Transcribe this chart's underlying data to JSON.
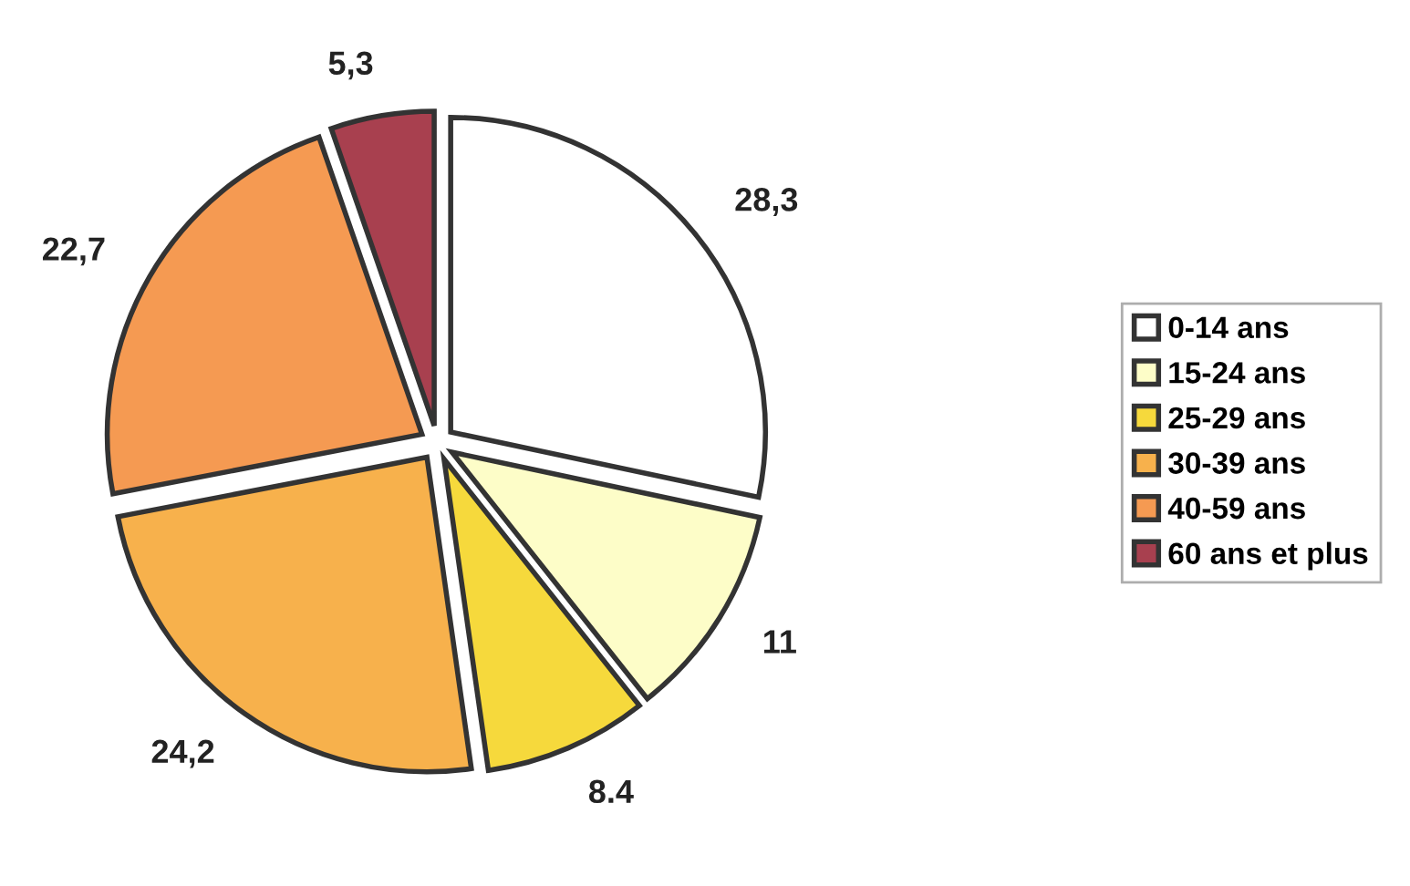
{
  "chart_data": {
    "type": "pie",
    "categories": [
      "0-14 ans",
      "15-24 ans",
      "25-29 ans",
      "30-39 ans",
      "40-59 ans",
      "60 ans et plus"
    ],
    "values": [
      28.3,
      11,
      8.4,
      24.2,
      22.7,
      5.3
    ],
    "value_labels": [
      "28,3",
      "11",
      "8.4",
      "24,2",
      "22,7",
      "5,3"
    ],
    "colors": [
      "#ffffff",
      "#fdfdc8",
      "#f6d93c",
      "#f7b14c",
      "#f59a52",
      "#a8404f"
    ],
    "legend": "right"
  }
}
